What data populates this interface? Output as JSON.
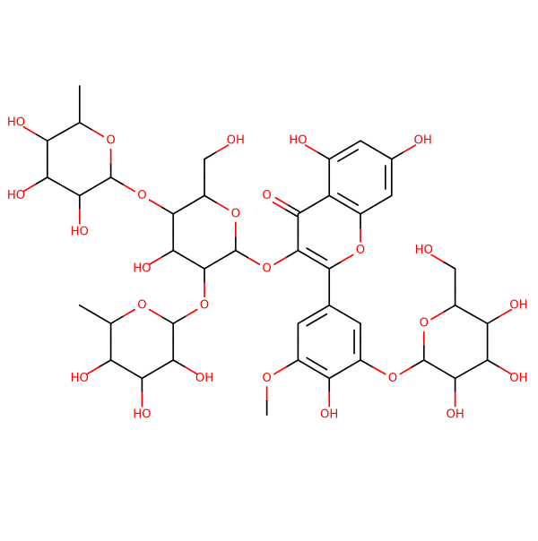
{
  "labels": [
    "OH",
    "HO",
    "O",
    "O",
    "O",
    "OH",
    "O",
    "O",
    "OH",
    "O",
    "O",
    "HO",
    "O",
    "O",
    "HO",
    "HO",
    "HO",
    "O",
    "OH",
    "HO",
    "HO",
    "O",
    "HO",
    "OH",
    "OH",
    "OH"
  ]
}
